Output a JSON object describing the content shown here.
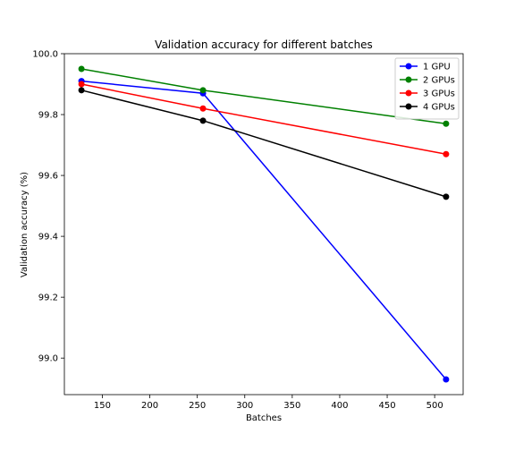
{
  "chart_data": {
    "type": "line",
    "title": "Validation accuracy for different batches",
    "xlabel": "Batches",
    "ylabel": "Validation accuracy (%)",
    "x": [
      128,
      256,
      512
    ],
    "xlim": [
      110,
      530
    ],
    "ylim": [
      98.88,
      100.0
    ],
    "xticks": [
      150,
      200,
      250,
      300,
      350,
      400,
      450,
      500
    ],
    "yticks": [
      99.0,
      99.2,
      99.4,
      99.6,
      99.8,
      100.0
    ],
    "xtick_labels": [
      "150",
      "200",
      "250",
      "300",
      "350",
      "400",
      "450",
      "500"
    ],
    "ytick_labels": [
      "99.0",
      "99.2",
      "99.4",
      "99.6",
      "99.8",
      "100.0"
    ],
    "grid": false,
    "legend_position": "top-right",
    "series": [
      {
        "name": "1 GPU",
        "color": "#0000ff",
        "values": [
          99.91,
          99.87,
          98.93
        ]
      },
      {
        "name": "2 GPUs",
        "color": "#008000",
        "values": [
          99.95,
          99.88,
          99.77
        ]
      },
      {
        "name": "3 GPUs",
        "color": "#ff0000",
        "values": [
          99.9,
          99.82,
          99.67
        ]
      },
      {
        "name": "4 GPUs",
        "color": "#000000",
        "values": [
          99.88,
          99.78,
          99.53
        ]
      }
    ]
  }
}
